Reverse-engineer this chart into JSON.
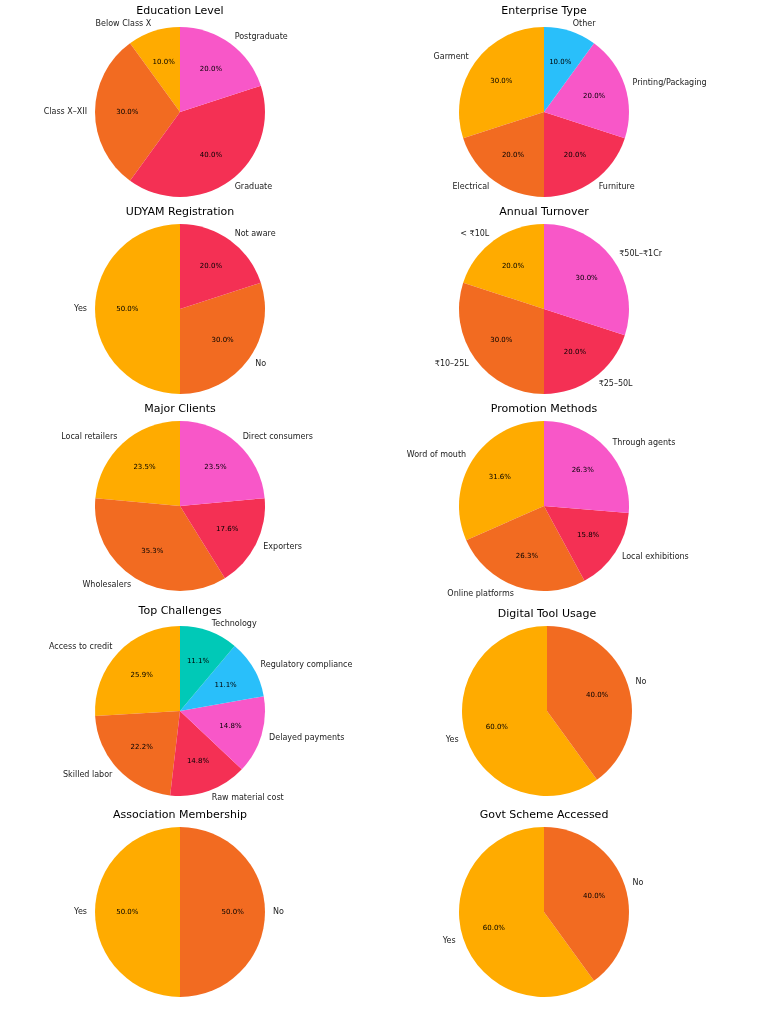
{
  "chart_data": [
    {
      "type": "pie",
      "title": "Education Level",
      "categories": [
        "Below Class X",
        "Class X–XII",
        "Graduate",
        "Postgraduate"
      ],
      "values": [
        10,
        30,
        40,
        20
      ],
      "value_labels": [
        "10.0%",
        "30.0%",
        "40.0%",
        "20.0%"
      ],
      "colors": [
        "#ffab00",
        "#f26b21",
        "#f43054",
        "#f857c8"
      ],
      "legend": false
    },
    {
      "type": "pie",
      "title": "Enterprise Type",
      "categories": [
        "Garment",
        "Electrical",
        "Furniture",
        "Printing/Packaging",
        "Other"
      ],
      "values": [
        30,
        20,
        20,
        20,
        10
      ],
      "value_labels": [
        "30.0%",
        "20.0%",
        "20.0%",
        "20.0%",
        "10.0%"
      ],
      "colors": [
        "#ffab00",
        "#f26b21",
        "#f43054",
        "#f857c8",
        "#29bffa"
      ],
      "legend": false
    },
    {
      "type": "pie",
      "title": "UDYAM Registration",
      "categories": [
        "Yes",
        "No",
        "Not aware"
      ],
      "values": [
        50,
        30,
        20
      ],
      "value_labels": [
        "50.0%",
        "30.0%",
        "20.0%"
      ],
      "colors": [
        "#ffab00",
        "#f26b21",
        "#f43054"
      ],
      "legend": false
    },
    {
      "type": "pie",
      "title": "Annual Turnover",
      "categories": [
        "< ₹10L",
        "₹10–25L",
        "₹25–50L",
        "₹50L–₹1Cr"
      ],
      "values": [
        20,
        30,
        20,
        30
      ],
      "value_labels": [
        "20.0%",
        "30.0%",
        "20.0%",
        "30.0%"
      ],
      "colors": [
        "#ffab00",
        "#f26b21",
        "#f43054",
        "#f857c8"
      ],
      "legend": false
    },
    {
      "type": "pie",
      "title": "Major Clients",
      "categories": [
        "Local retailers",
        "Wholesalers",
        "Exporters",
        "Direct consumers"
      ],
      "values": [
        23.5,
        35.3,
        17.6,
        23.5
      ],
      "value_labels": [
        "23.5%",
        "35.3%",
        "17.6%",
        "23.5%"
      ],
      "colors": [
        "#ffab00",
        "#f26b21",
        "#f43054",
        "#f857c8"
      ],
      "legend": false
    },
    {
      "type": "pie",
      "title": "Promotion Methods",
      "categories": [
        "Word of mouth",
        "Online platforms",
        "Local exhibitions",
        "Through agents"
      ],
      "values": [
        31.6,
        26.3,
        15.8,
        26.3
      ],
      "value_labels": [
        "31.6%",
        "26.3%",
        "15.8%",
        "26.3%"
      ],
      "colors": [
        "#ffab00",
        "#f26b21",
        "#f43054",
        "#f857c8"
      ],
      "legend": false
    },
    {
      "type": "pie",
      "title": "Top Challenges",
      "categories": [
        "Access to credit",
        "Skilled labor",
        "Raw material cost",
        "Delayed payments",
        "Regulatory compliance",
        "Technology"
      ],
      "values": [
        25.9,
        22.2,
        14.8,
        14.8,
        11.1,
        11.1
      ],
      "value_labels": [
        "25.9%",
        "22.2%",
        "14.8%",
        "14.8%",
        "11.1%",
        "11.1%"
      ],
      "colors": [
        "#ffab00",
        "#f26b21",
        "#f43054",
        "#f857c8",
        "#29bffa",
        "#00c9b7"
      ],
      "legend": false
    },
    {
      "type": "pie",
      "title": "Digital Tool Usage",
      "categories": [
        "Yes",
        "No"
      ],
      "values": [
        60,
        40
      ],
      "value_labels": [
        "60.0%",
        "40.0%"
      ],
      "colors": [
        "#ffab00",
        "#f26b21"
      ],
      "legend": false
    },
    {
      "type": "pie",
      "title": "Association Membership",
      "categories": [
        "Yes",
        "No"
      ],
      "values": [
        50,
        50
      ],
      "value_labels": [
        "50.0%",
        "50.0%"
      ],
      "colors": [
        "#ffab00",
        "#f26b21"
      ],
      "legend": false
    },
    {
      "type": "pie",
      "title": "Govt Scheme Accessed",
      "categories": [
        "Yes",
        "No"
      ],
      "values": [
        60,
        40
      ],
      "value_labels": [
        "60.0%",
        "40.0%"
      ],
      "colors": [
        "#ffab00",
        "#f26b21"
      ],
      "legend": false
    }
  ]
}
